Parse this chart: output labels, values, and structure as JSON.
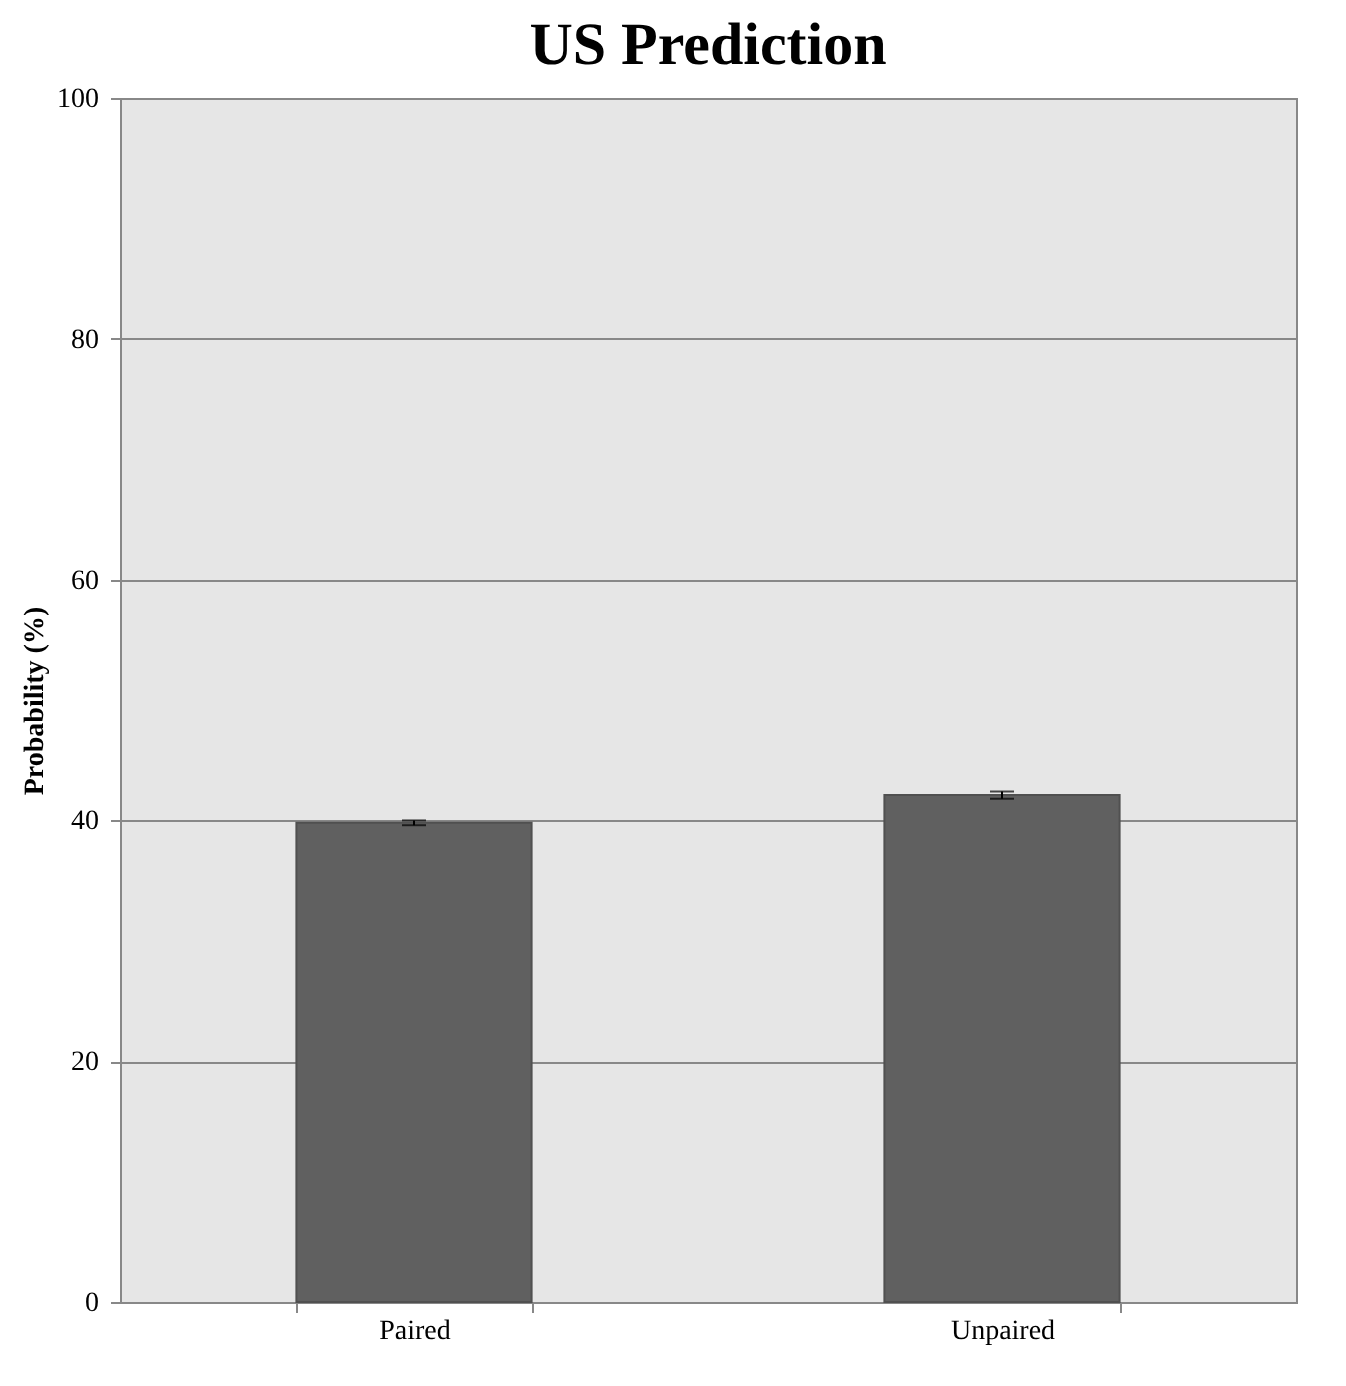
{
  "chart_data": {
    "type": "bar",
    "title": "US Prediction",
    "ylabel": "Probability (%)",
    "categories": [
      "Paired",
      "Unpaired"
    ],
    "series": [
      {
        "color": "#606060",
        "values": [
          39.8,
          42.1
        ],
        "errors": [
          0.2,
          0.3
        ]
      }
    ],
    "ylim": [
      0,
      100
    ],
    "yticks": [
      0,
      20,
      40,
      60,
      80,
      100
    ],
    "grid": "y"
  }
}
